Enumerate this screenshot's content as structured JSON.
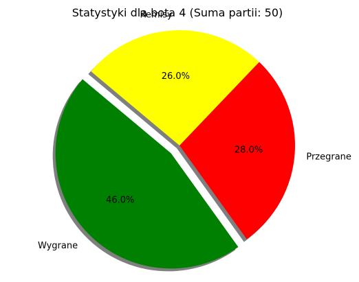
{
  "chart_data": {
    "type": "pie",
    "title": "Statystyki dla bota 4 (Suma partii: 50)",
    "categories": [
      "Wygrane",
      "Przegrane",
      "Remisy"
    ],
    "values": [
      46.0,
      28.0,
      26.0
    ],
    "percent_labels": [
      "46.0%",
      "28.0%",
      "26.0%"
    ],
    "colors": [
      "#008000",
      "#ff0000",
      "#ffff00"
    ],
    "exploded": [
      "Wygrane"
    ],
    "shadow": true,
    "legend": "none"
  }
}
